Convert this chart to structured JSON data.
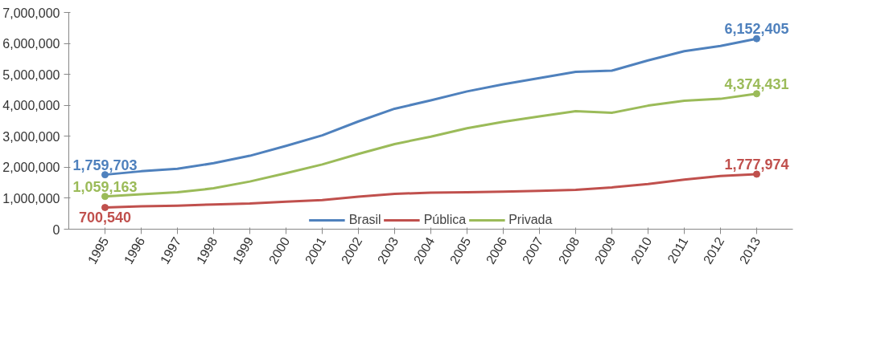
{
  "chart_data": {
    "type": "line",
    "categories": [
      "1995",
      "1996",
      "1997",
      "1998",
      "1999",
      "2000",
      "2001",
      "2002",
      "2003",
      "2004",
      "2005",
      "2006",
      "2007",
      "2008",
      "2009",
      "2010",
      "2011",
      "2012",
      "2013"
    ],
    "series": [
      {
        "name": "Brasil",
        "color": "#4f81bd",
        "values": [
          1759703,
          1870000,
          1950000,
          2130000,
          2370000,
          2690000,
          3030000,
          3480000,
          3890000,
          4160000,
          4450000,
          4680000,
          4880000,
          5080000,
          5120000,
          5450000,
          5750000,
          5920000,
          6152405
        ],
        "value_labels": [
          "1,759,703",
          null,
          null,
          null,
          null,
          null,
          null,
          null,
          null,
          null,
          null,
          null,
          null,
          null,
          null,
          null,
          null,
          null,
          "6,152,405"
        ]
      },
      {
        "name": "Pública",
        "color": "#c0504d",
        "values": [
          700540,
          740000,
          760000,
          800000,
          830000,
          890000,
          940000,
          1050000,
          1140000,
          1180000,
          1190000,
          1210000,
          1240000,
          1270000,
          1350000,
          1460000,
          1600000,
          1720000,
          1777974
        ],
        "value_labels": [
          "700,540",
          null,
          null,
          null,
          null,
          null,
          null,
          null,
          null,
          null,
          null,
          null,
          null,
          null,
          null,
          null,
          null,
          null,
          "1,777,974"
        ]
      },
      {
        "name": "Privada",
        "color": "#9bbb59",
        "values": [
          1059163,
          1130000,
          1190000,
          1320000,
          1540000,
          1810000,
          2090000,
          2430000,
          2750000,
          2990000,
          3260000,
          3470000,
          3640000,
          3810000,
          3760000,
          3990000,
          4150000,
          4210000,
          4374431
        ],
        "value_labels": [
          "1,059,163",
          null,
          null,
          null,
          null,
          null,
          null,
          null,
          null,
          null,
          null,
          null,
          null,
          null,
          null,
          null,
          null,
          null,
          "4,374,431"
        ]
      }
    ],
    "ylim": [
      0,
      7000000
    ],
    "yticks": [
      0,
      {
        "value": 1000000,
        "label": "1,000,000"
      },
      {
        "value": 2000000,
        "label": "2,000,000"
      },
      {
        "value": 3000000,
        "label": "3,000,000"
      },
      {
        "value": 4000000,
        "label": "4,000,000"
      },
      {
        "value": 5000000,
        "label": "5,000,000"
      },
      {
        "value": 6000000,
        "label": "6,000,000"
      },
      {
        "value": 7000000,
        "label": "7,000,000"
      }
    ],
    "grid": false,
    "legend": "bottom",
    "line_style": "solid"
  }
}
